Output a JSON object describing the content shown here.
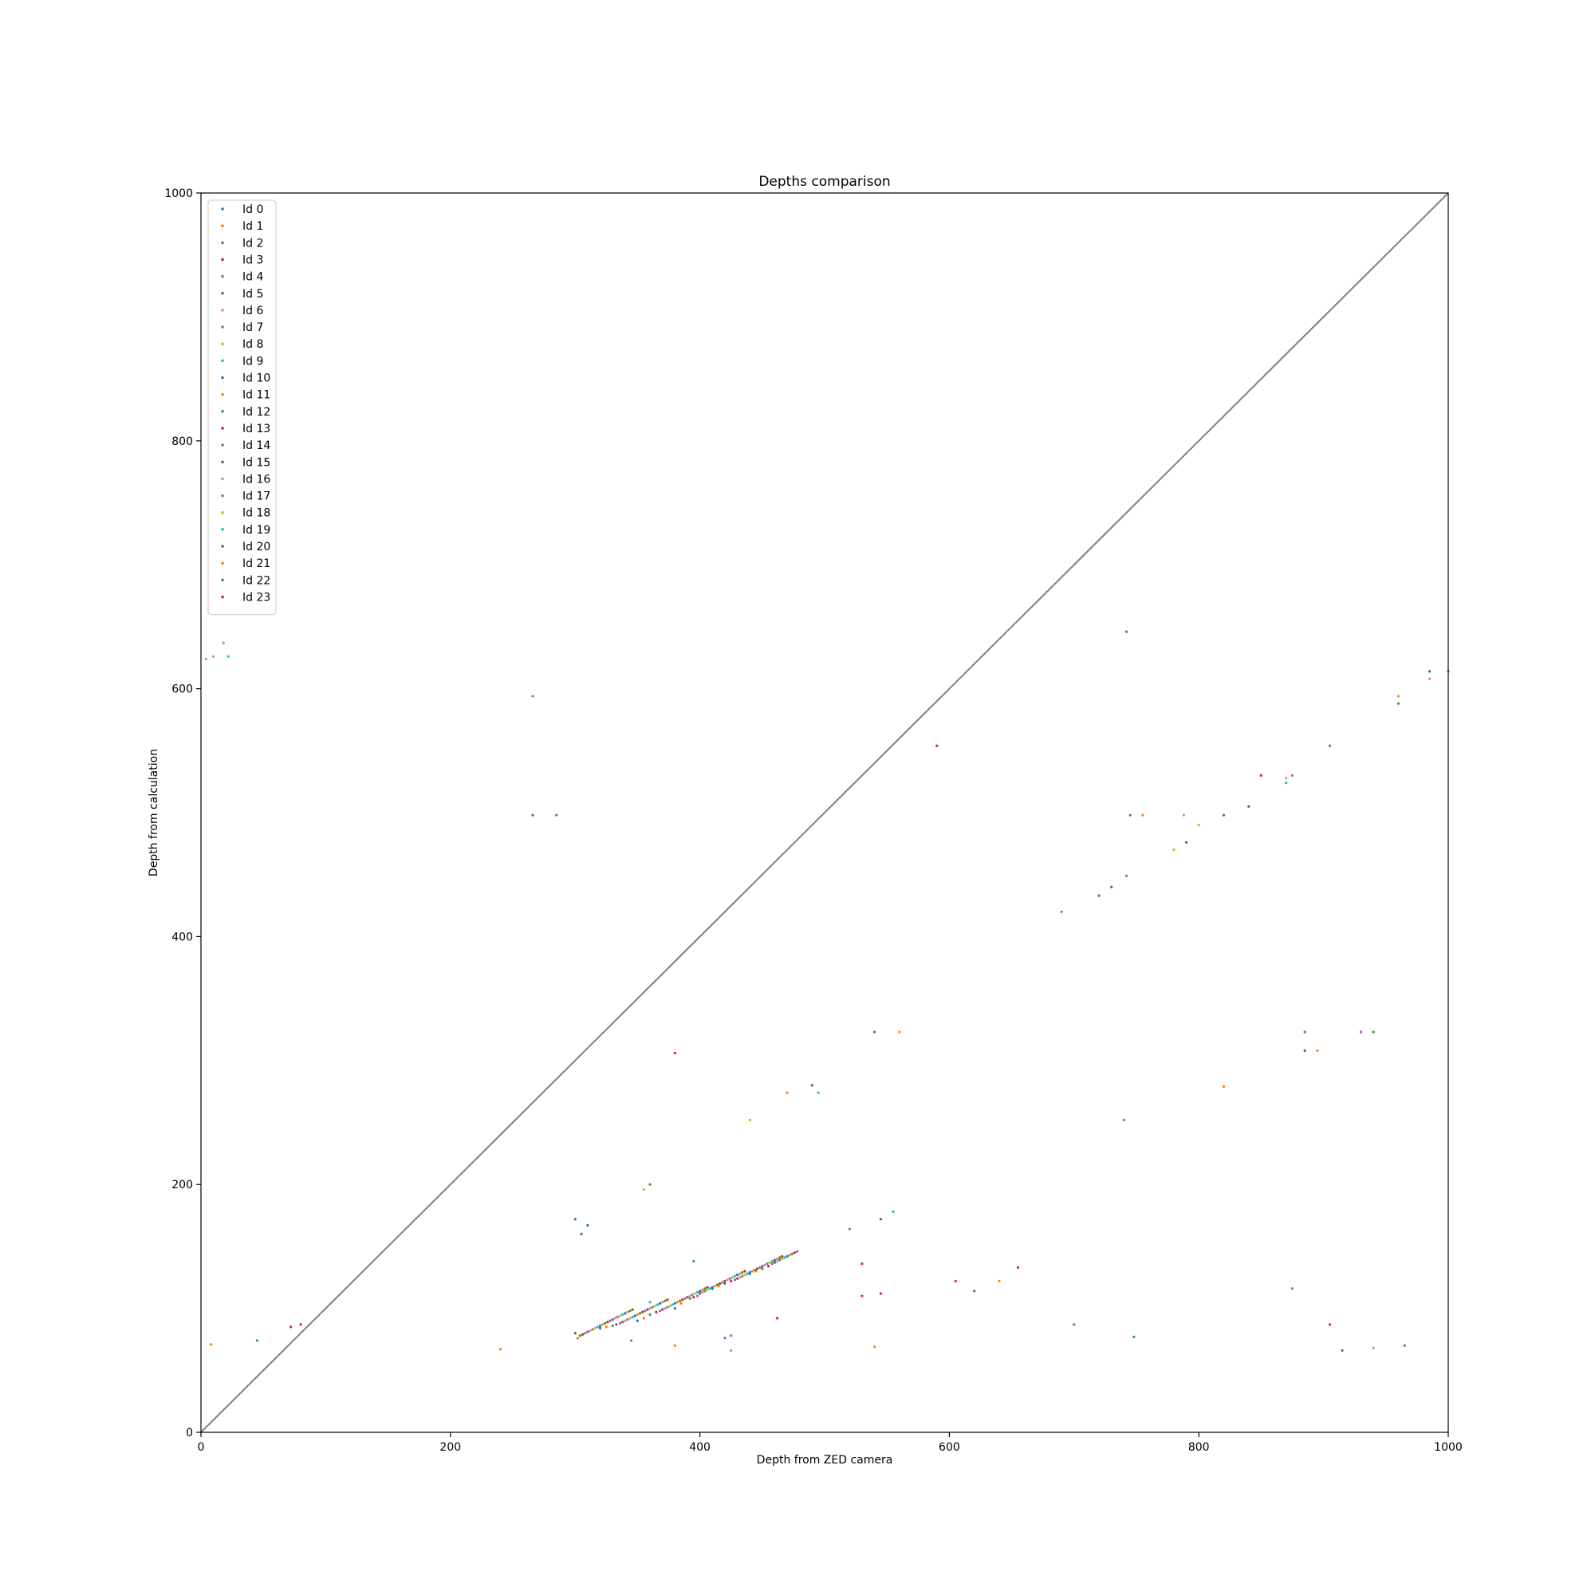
{
  "chart_data": {
    "type": "scatter",
    "title": "Depths comparison",
    "xlabel": "Depth from ZED camera",
    "ylabel": "Depth from calculation",
    "xlim": [
      0,
      1000
    ],
    "ylim": [
      0,
      1000
    ],
    "xticks": [
      "0",
      "200",
      "400",
      "600",
      "800",
      "1000"
    ],
    "yticks": [
      "0",
      "200",
      "400",
      "600",
      "800",
      "1000"
    ],
    "grid": false,
    "legend_position": "upper-left",
    "reference_line": {
      "from": [
        0,
        0
      ],
      "to": [
        1000,
        1000
      ],
      "color": "#7f7f7f"
    },
    "series": [
      {
        "name": "Id 0",
        "color": "#1f77b4",
        "points": [
          [
            300,
            80
          ],
          [
            320,
            84
          ],
          [
            350,
            90
          ],
          [
            380,
            100
          ],
          [
            410,
            116
          ],
          [
            440,
            128
          ],
          [
            885,
            308
          ],
          [
            985,
            614
          ],
          [
            545,
            172
          ],
          [
            266,
            498
          ]
        ]
      },
      {
        "name": "Id 1",
        "color": "#ff7f0e",
        "points": [
          [
            302,
            76
          ],
          [
            325,
            85
          ],
          [
            355,
            92
          ],
          [
            385,
            104
          ],
          [
            415,
            118
          ],
          [
            445,
            130
          ],
          [
            8,
            71
          ],
          [
            240,
            67
          ],
          [
            540,
            69
          ],
          [
            820,
            279
          ],
          [
            930,
            323
          ],
          [
            895,
            308
          ]
        ]
      },
      {
        "name": "Id 2",
        "color": "#2ca02c",
        "points": [
          [
            304,
            78
          ],
          [
            330,
            86
          ],
          [
            360,
            95
          ],
          [
            392,
            108
          ],
          [
            420,
            120
          ],
          [
            450,
            132
          ],
          [
            45,
            74
          ],
          [
            700,
            87
          ],
          [
            748,
            77
          ],
          [
            885,
            323
          ],
          [
            905,
            554
          ],
          [
            960,
            588
          ],
          [
            285,
            498
          ]
        ]
      },
      {
        "name": "Id 3",
        "color": "#d62728",
        "points": [
          [
            306,
            79
          ],
          [
            333,
            87
          ],
          [
            365,
            97
          ],
          [
            395,
            109
          ],
          [
            425,
            122
          ],
          [
            455,
            134
          ],
          [
            72,
            85
          ],
          [
            80,
            87
          ],
          [
            380,
            306
          ],
          [
            605,
            122
          ],
          [
            655,
            133
          ],
          [
            905,
            87
          ]
        ]
      },
      {
        "name": "Id 4",
        "color": "#9467bd",
        "points": [
          [
            308,
            80
          ],
          [
            336,
            88
          ],
          [
            368,
            98
          ],
          [
            398,
            110
          ],
          [
            428,
            123
          ],
          [
            458,
            136
          ],
          [
            690,
            420
          ],
          [
            345,
            74
          ],
          [
            420,
            76
          ],
          [
            930,
            323
          ]
        ]
      },
      {
        "name": "Id 5",
        "color": "#8c564b",
        "points": [
          [
            310,
            81
          ],
          [
            338,
            89
          ],
          [
            370,
            99
          ],
          [
            400,
            112
          ],
          [
            430,
            124
          ],
          [
            460,
            137
          ],
          [
            720,
            433
          ],
          [
            790,
            476
          ],
          [
            540,
            323
          ]
        ]
      },
      {
        "name": "Id 6",
        "color": "#e377c2",
        "points": [
          [
            312,
            82
          ],
          [
            340,
            90
          ],
          [
            372,
            100
          ],
          [
            402,
            113
          ],
          [
            432,
            125
          ],
          [
            462,
            138
          ],
          [
            10,
            626
          ],
          [
            18,
            637
          ],
          [
            788,
            498
          ],
          [
            985,
            608
          ]
        ]
      },
      {
        "name": "Id 7",
        "color": "#7f7f7f",
        "points": [
          [
            314,
            83
          ],
          [
            342,
            91
          ],
          [
            374,
            101
          ],
          [
            404,
            114
          ],
          [
            434,
            126
          ],
          [
            464,
            139
          ],
          [
            742,
            449
          ],
          [
            875,
            116
          ],
          [
            1000,
            614
          ]
        ]
      },
      {
        "name": "Id 8",
        "color": "#bcbd22",
        "points": [
          [
            316,
            84
          ],
          [
            344,
            92
          ],
          [
            376,
            102
          ],
          [
            406,
            115
          ],
          [
            436,
            127
          ],
          [
            466,
            140
          ],
          [
            440,
            252
          ],
          [
            800,
            490
          ],
          [
            870,
            528
          ]
        ]
      },
      {
        "name": "Id 9",
        "color": "#17becf",
        "points": [
          [
            318,
            85
          ],
          [
            346,
            93
          ],
          [
            378,
            103
          ],
          [
            408,
            116
          ],
          [
            438,
            128
          ],
          [
            468,
            141
          ],
          [
            360,
            105
          ],
          [
            495,
            274
          ],
          [
            555,
            178
          ]
        ]
      },
      {
        "name": "Id 10",
        "color": "#1f77b4",
        "points": [
          [
            320,
            86
          ],
          [
            348,
            94
          ],
          [
            380,
            104
          ],
          [
            410,
            117
          ],
          [
            440,
            129
          ],
          [
            470,
            142
          ],
          [
            300,
            172
          ],
          [
            310,
            167
          ],
          [
            620,
            114
          ],
          [
            915,
            66
          ]
        ]
      },
      {
        "name": "Id 11",
        "color": "#ff7f0e",
        "points": [
          [
            322,
            87
          ],
          [
            350,
            95
          ],
          [
            382,
            105
          ],
          [
            412,
            118
          ],
          [
            442,
            130
          ],
          [
            472,
            143
          ],
          [
            470,
            274
          ],
          [
            560,
            323
          ],
          [
            755,
            498
          ],
          [
            960,
            594
          ]
        ]
      },
      {
        "name": "Id 12",
        "color": "#2ca02c",
        "points": [
          [
            324,
            88
          ],
          [
            352,
            96
          ],
          [
            384,
            106
          ],
          [
            414,
            119
          ],
          [
            444,
            131
          ],
          [
            474,
            144
          ],
          [
            360,
            200
          ],
          [
            742,
            646
          ],
          [
            745,
            498
          ],
          [
            940,
            323
          ]
        ]
      },
      {
        "name": "Id 13",
        "color": "#d62728",
        "points": [
          [
            326,
            89
          ],
          [
            354,
            97
          ],
          [
            386,
            107
          ],
          [
            416,
            120
          ],
          [
            446,
            132
          ],
          [
            476,
            145
          ],
          [
            590,
            554
          ],
          [
            530,
            136
          ],
          [
            545,
            112
          ]
        ]
      },
      {
        "name": "Id 14",
        "color": "#9467bd",
        "points": [
          [
            328,
            90
          ],
          [
            356,
            98
          ],
          [
            388,
            108
          ],
          [
            418,
            121
          ],
          [
            448,
            133
          ],
          [
            478,
            146
          ],
          [
            266,
            594
          ],
          [
            520,
            164
          ],
          [
            425,
            78
          ]
        ]
      },
      {
        "name": "Id 15",
        "color": "#8c564b",
        "points": [
          [
            330,
            91
          ],
          [
            358,
            99
          ],
          [
            390,
            109
          ],
          [
            420,
            122
          ],
          [
            450,
            134
          ],
          [
            305,
            160
          ],
          [
            730,
            440
          ],
          [
            840,
            505
          ]
        ]
      },
      {
        "name": "Id 16",
        "color": "#e377c2",
        "points": [
          [
            332,
            92
          ],
          [
            360,
            100
          ],
          [
            392,
            110
          ],
          [
            422,
            123
          ],
          [
            452,
            135
          ],
          [
            4,
            624
          ],
          [
            425,
            66
          ],
          [
            940,
            68
          ]
        ]
      },
      {
        "name": "Id 17",
        "color": "#7f7f7f",
        "points": [
          [
            334,
            93
          ],
          [
            362,
            101
          ],
          [
            394,
            111
          ],
          [
            424,
            124
          ],
          [
            454,
            136
          ],
          [
            740,
            252
          ],
          [
            875,
            530
          ]
        ]
      },
      {
        "name": "Id 18",
        "color": "#bcbd22",
        "points": [
          [
            336,
            94
          ],
          [
            364,
            102
          ],
          [
            396,
            112
          ],
          [
            426,
            125
          ],
          [
            456,
            137
          ],
          [
            355,
            196
          ],
          [
            780,
            470
          ]
        ]
      },
      {
        "name": "Id 19",
        "color": "#17becf",
        "points": [
          [
            338,
            95
          ],
          [
            366,
            103
          ],
          [
            398,
            113
          ],
          [
            428,
            126
          ],
          [
            458,
            138
          ],
          [
            22,
            626
          ],
          [
            870,
            524
          ]
        ]
      },
      {
        "name": "Id 20",
        "color": "#1f77b4",
        "points": [
          [
            340,
            96
          ],
          [
            368,
            104
          ],
          [
            400,
            114
          ],
          [
            430,
            127
          ],
          [
            460,
            139
          ],
          [
            490,
            280
          ],
          [
            820,
            498
          ]
        ]
      },
      {
        "name": "Id 21",
        "color": "#ff7f0e",
        "points": [
          [
            342,
            97
          ],
          [
            370,
            105
          ],
          [
            402,
            115
          ],
          [
            432,
            128
          ],
          [
            462,
            140
          ],
          [
            380,
            70
          ],
          [
            640,
            122
          ]
        ]
      },
      {
        "name": "Id 22",
        "color": "#2ca02c",
        "points": [
          [
            344,
            98
          ],
          [
            372,
            106
          ],
          [
            404,
            116
          ],
          [
            434,
            129
          ],
          [
            464,
            141
          ],
          [
            395,
            138
          ],
          [
            965,
            70
          ]
        ]
      },
      {
        "name": "Id 23",
        "color": "#d62728",
        "points": [
          [
            346,
            99
          ],
          [
            374,
            107
          ],
          [
            406,
            117
          ],
          [
            436,
            130
          ],
          [
            466,
            142
          ],
          [
            530,
            110
          ],
          [
            462,
            92
          ],
          [
            850,
            530
          ]
        ]
      }
    ]
  }
}
